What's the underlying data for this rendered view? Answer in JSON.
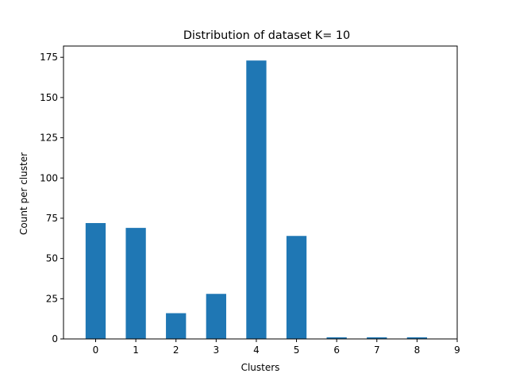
{
  "chart_data": {
    "type": "bar",
    "title": "Distribution of dataset K= 10",
    "xlabel": "Clusters",
    "ylabel": "Count per cluster",
    "categories": [
      0,
      1,
      2,
      3,
      4,
      5,
      6,
      7,
      8
    ],
    "values": [
      72,
      69,
      16,
      28,
      173,
      64,
      1,
      1,
      1
    ],
    "xticks": [
      0,
      1,
      2,
      3,
      4,
      5,
      6,
      7,
      8,
      9
    ],
    "yticks": [
      0,
      25,
      50,
      75,
      100,
      125,
      150,
      175
    ],
    "xlim": [
      -0.8,
      9.0
    ],
    "ylim": [
      0,
      182
    ],
    "bar_color": "#1f77b4",
    "grid": false,
    "legend": false
  }
}
